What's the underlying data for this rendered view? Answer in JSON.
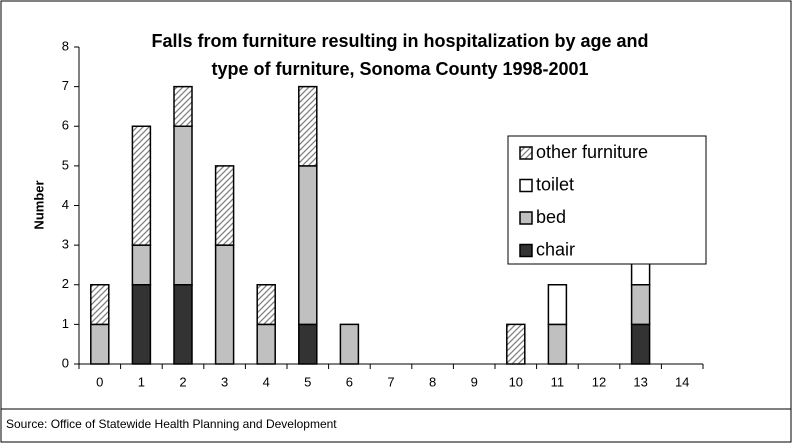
{
  "chart_data": {
    "type": "stacked_bar",
    "title": [
      "Falls from furniture resulting in hospitalization  by age and",
      "type of furniture, Sonoma County 1998-2001"
    ],
    "y_label": "Number",
    "source": "Source: Office of Statewide Health Planning and Development",
    "categories": [
      "0",
      "1",
      "2",
      "3",
      "4",
      "5",
      "6",
      "7",
      "8",
      "9",
      "10",
      "11",
      "12",
      "13",
      "14"
    ],
    "series": [
      {
        "name": "chair",
        "color": "#333333",
        "values": [
          0,
          2,
          2,
          0,
          0,
          1,
          0,
          0,
          0,
          0,
          0,
          0,
          0,
          1,
          0
        ]
      },
      {
        "name": "bed",
        "color": "#c0c0c0",
        "values": [
          1,
          1,
          4,
          3,
          1,
          4,
          1,
          0,
          0,
          0,
          0,
          1,
          0,
          1,
          0
        ]
      },
      {
        "name": "toilet",
        "color": "#ffffff",
        "values": [
          0,
          0,
          0,
          0,
          0,
          0,
          0,
          0,
          0,
          0,
          0,
          1,
          0,
          1,
          0
        ]
      },
      {
        "name": "other furniture",
        "color": "#808080",
        "hatch": true,
        "values": [
          1,
          3,
          1,
          2,
          1,
          2,
          0,
          0,
          0,
          0,
          1,
          0,
          0,
          0,
          0
        ]
      }
    ],
    "ylim": [
      0,
      8
    ],
    "yticks": [
      0,
      1,
      2,
      3,
      4,
      5,
      6,
      7,
      8
    ],
    "grid": false,
    "legend": "right"
  }
}
